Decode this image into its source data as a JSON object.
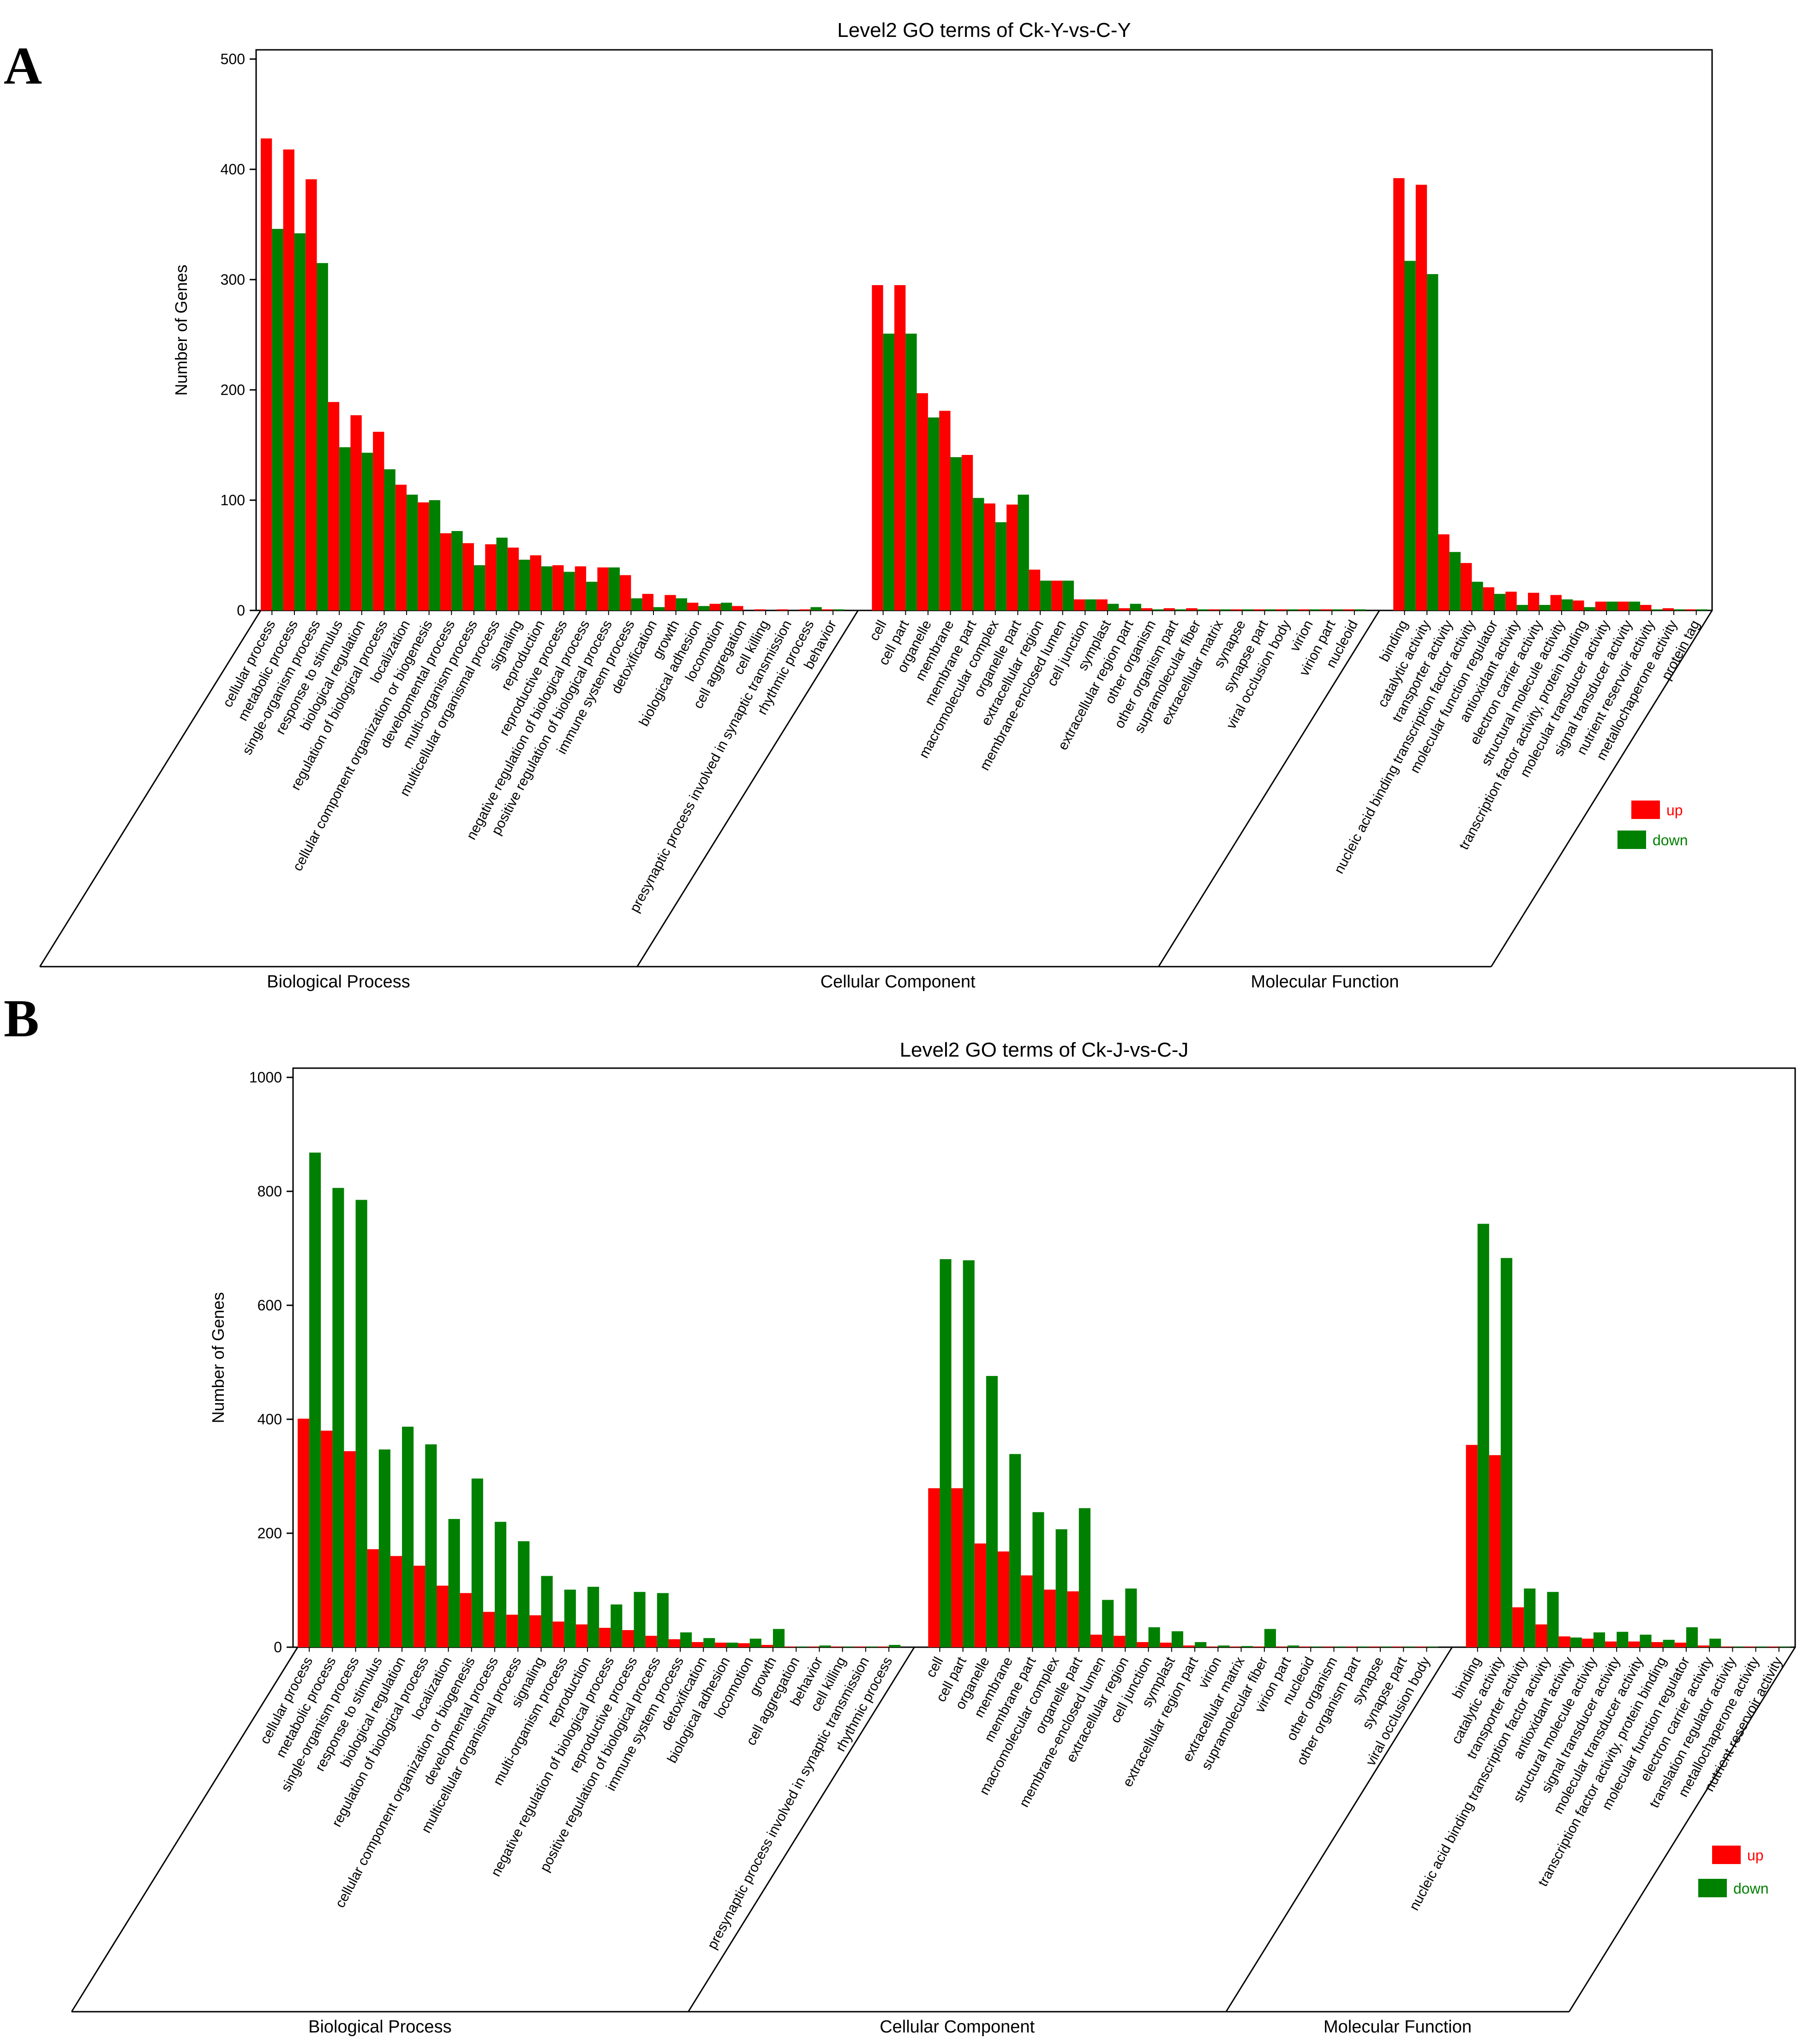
{
  "panel_letters": [
    "A",
    "B"
  ],
  "legend": {
    "up_label": "up",
    "down_label": "down"
  },
  "colors": {
    "up": "#ff0000",
    "down": "#008000",
    "axis": "#000000",
    "text": "#000000"
  },
  "chart_data": [
    {
      "type": "bar",
      "title": "Level2 GO terms of Ck-Y-vs-C-Y",
      "ylabel": "Number of Genes",
      "ylim": [
        0,
        500
      ],
      "yticks": [
        0,
        100,
        200,
        300,
        400,
        500
      ],
      "series_names": [
        "up",
        "down"
      ],
      "groups": [
        {
          "name": "Biological Process",
          "categories": [
            "cellular process",
            "metabolic process",
            "single-organism process",
            "response to stimulus",
            "biological regulation",
            "regulation of biological process",
            "localization",
            "cellular component organization or biogenesis",
            "developmental process",
            "multi-organism process",
            "multicellular organismal process",
            "signaling",
            "reproduction",
            "reproductive process",
            "negative regulation of biological process",
            "positive regulation of biological process",
            "immune system process",
            "detoxification",
            "growth",
            "biological adhesion",
            "locomotion",
            "cell aggregation",
            "cell killing",
            "presynaptic process involved in synaptic transmission",
            "rhythmic process",
            "behavior"
          ],
          "up": [
            428,
            418,
            391,
            189,
            177,
            162,
            114,
            98,
            70,
            61,
            60,
            57,
            50,
            41,
            40,
            39,
            32,
            15,
            14,
            7,
            6,
            4,
            1,
            1,
            1,
            1
          ],
          "down": [
            346,
            342,
            315,
            148,
            143,
            128,
            105,
            100,
            72,
            41,
            66,
            46,
            40,
            35,
            26,
            39,
            11,
            3,
            11,
            4,
            7,
            0,
            0,
            0,
            3,
            1
          ]
        },
        {
          "name": "Cellular Component",
          "categories": [
            "cell",
            "cell part",
            "organelle",
            "membrane",
            "membrane part",
            "macromolecular complex",
            "organelle part",
            "extracellular region",
            "membrane-enclosed lumen",
            "cell junction",
            "symplast",
            "extracellular region part",
            "other organism",
            "other organism part",
            "supramolecular fiber",
            "extracellular matrix",
            "synapse",
            "synapse part",
            "viral occlusion body",
            "virion",
            "virion part",
            "nucleoid"
          ],
          "up": [
            295,
            295,
            197,
            181,
            141,
            97,
            96,
            37,
            27,
            10,
            10,
            2,
            2,
            2,
            2,
            1,
            1,
            1,
            1,
            1,
            1,
            1
          ],
          "down": [
            251,
            251,
            175,
            139,
            102,
            80,
            105,
            27,
            27,
            10,
            6,
            6,
            1,
            1,
            1,
            1,
            1,
            1,
            1,
            1,
            1,
            1
          ]
        },
        {
          "name": "Molecular Function",
          "categories": [
            "binding",
            "catalytic activity",
            "transporter activity",
            "nucleic acid binding transcription factor activity",
            "molecular function regulator",
            "antioxidant activity",
            "electron carrier activity",
            "structural molecule activity",
            "transcription factor activity, protein binding",
            "molecular transducer activity",
            "signal transducer activity",
            "nutrient reservoir activity",
            "metallochaperone activity",
            "protein tag"
          ],
          "up": [
            392,
            386,
            69,
            43,
            21,
            17,
            16,
            14,
            9,
            8,
            8,
            5,
            2,
            1
          ],
          "down": [
            317,
            305,
            53,
            26,
            15,
            5,
            5,
            10,
            3,
            8,
            8,
            1,
            1,
            1
          ]
        }
      ]
    },
    {
      "type": "bar",
      "title": "Level2 GO terms of Ck-J-vs-C-J",
      "ylabel": "Number of Genes",
      "ylim": [
        0,
        1000
      ],
      "yticks": [
        0,
        200,
        400,
        600,
        800,
        1000
      ],
      "series_names": [
        "up",
        "down"
      ],
      "groups": [
        {
          "name": "Biological Process",
          "categories": [
            "cellular process",
            "metabolic process",
            "single-organism process",
            "response to stimulus",
            "biological regulation",
            "regulation of biological process",
            "localization",
            "cellular component organization or biogenesis",
            "developmental process",
            "multicellular organismal process",
            "signaling",
            "multi-organism process",
            "reproduction",
            "negative regulation of biological process",
            "reproductive process",
            "positive regulation of biological process",
            "immune system process",
            "detoxification",
            "biological adhesion",
            "locomotion",
            "growth",
            "cell aggregation",
            "behavior",
            "cell killing",
            "presynaptic process involved in synaptic transmission",
            "rhythmic process"
          ],
          "up": [
            401,
            380,
            344,
            172,
            160,
            143,
            108,
            95,
            62,
            57,
            56,
            45,
            40,
            34,
            30,
            20,
            14,
            9,
            8,
            7,
            4,
            1,
            1,
            1,
            1,
            1
          ],
          "down": [
            868,
            806,
            785,
            347,
            387,
            356,
            225,
            296,
            220,
            186,
            125,
            101,
            106,
            75,
            97,
            95,
            26,
            16,
            8,
            15,
            32,
            1,
            3,
            1,
            1,
            4
          ]
        },
        {
          "name": "Cellular Component",
          "categories": [
            "cell",
            "cell part",
            "organelle",
            "membrane",
            "membrane part",
            "macromolecular complex",
            "organelle part",
            "membrane-enclosed lumen",
            "extracellular region",
            "cell junction",
            "symplast",
            "extracellular region part",
            "virion",
            "extracellular matrix",
            "supramolecular fiber",
            "virion part",
            "nucleoid",
            "other organism",
            "other organism part",
            "synapse",
            "synapse part",
            "viral occlusion body"
          ],
          "up": [
            279,
            279,
            182,
            168,
            126,
            101,
            98,
            22,
            20,
            9,
            8,
            3,
            1,
            1,
            1,
            1,
            1,
            1,
            1,
            1,
            1,
            1
          ],
          "down": [
            681,
            679,
            476,
            339,
            237,
            207,
            244,
            83,
            103,
            35,
            28,
            9,
            3,
            2,
            32,
            3,
            1,
            1,
            1,
            1,
            1,
            1
          ]
        },
        {
          "name": "Molecular Function",
          "categories": [
            "binding",
            "catalytic activity",
            "transporter activity",
            "nucleic acid binding transcription factor activity",
            "antioxidant activity",
            "structural molecule activity",
            "signal transducer activity",
            "molecular transducer activity",
            "transcription factor activity, protein binding",
            "molecular function regulator",
            "electron carrier activity",
            "translation regulator activity",
            "metallochaperone activity",
            "nutrient reservoir activity"
          ],
          "up": [
            355,
            337,
            70,
            40,
            19,
            15,
            10,
            10,
            9,
            8,
            3,
            1,
            1,
            1
          ],
          "down": [
            743,
            683,
            103,
            97,
            17,
            26,
            27,
            22,
            13,
            35,
            15,
            1,
            1,
            1
          ]
        }
      ]
    }
  ]
}
